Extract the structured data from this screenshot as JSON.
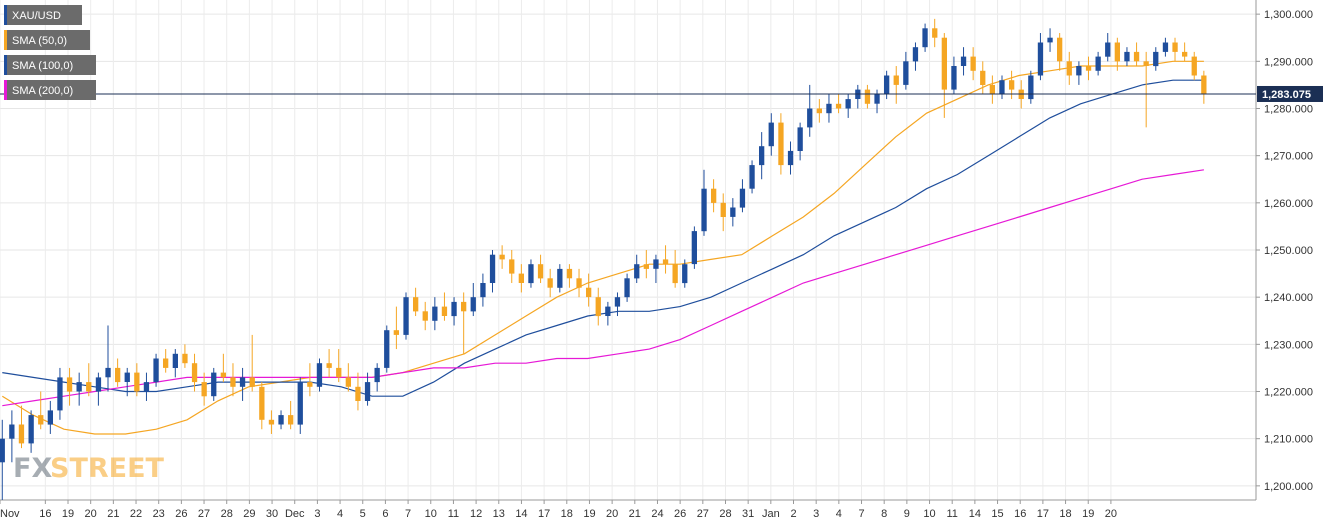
{
  "chart_data": {
    "type": "candlestick",
    "symbol": "XAU/USD",
    "y_axis": {
      "min": 1197,
      "max": 1303,
      "ticks": [
        "1,200.000",
        "1,210.000",
        "1,220.000",
        "1,230.000",
        "1,240.000",
        "1,250.000",
        "1,260.000",
        "1,270.000",
        "1,280.000",
        "1,290.000",
        "1,300.000"
      ],
      "tick_values": [
        1200,
        1210,
        1220,
        1230,
        1240,
        1250,
        1260,
        1270,
        1280,
        1290,
        1300
      ],
      "position": "right"
    },
    "x_axis": {
      "start": 0,
      "end": 55.4,
      "labels": [
        {
          "text": "Nov",
          "pos": 0
        },
        {
          "text": "16",
          "pos": 2
        },
        {
          "text": "19",
          "pos": 3
        },
        {
          "text": "20",
          "pos": 4
        },
        {
          "text": "21",
          "pos": 5
        },
        {
          "text": "22",
          "pos": 6
        },
        {
          "text": "23",
          "pos": 7
        },
        {
          "text": "26",
          "pos": 8
        },
        {
          "text": "27",
          "pos": 9
        },
        {
          "text": "28",
          "pos": 10
        },
        {
          "text": "29",
          "pos": 11
        },
        {
          "text": "30",
          "pos": 12
        },
        {
          "text": "Dec",
          "pos": 13
        },
        {
          "text": "3",
          "pos": 14
        },
        {
          "text": "4",
          "pos": 15
        },
        {
          "text": "5",
          "pos": 16
        },
        {
          "text": "6",
          "pos": 17
        },
        {
          "text": "7",
          "pos": 18
        },
        {
          "text": "10",
          "pos": 19
        },
        {
          "text": "11",
          "pos": 20
        },
        {
          "text": "12",
          "pos": 21
        },
        {
          "text": "13",
          "pos": 22
        },
        {
          "text": "14",
          "pos": 23
        },
        {
          "text": "17",
          "pos": 24
        },
        {
          "text": "18",
          "pos": 25
        },
        {
          "text": "19",
          "pos": 26
        },
        {
          "text": "20",
          "pos": 27
        },
        {
          "text": "21",
          "pos": 28
        },
        {
          "text": "24",
          "pos": 29
        },
        {
          "text": "26",
          "pos": 30
        },
        {
          "text": "27",
          "pos": 31
        },
        {
          "text": "28",
          "pos": 32
        },
        {
          "text": "31",
          "pos": 33
        },
        {
          "text": "Jan",
          "pos": 34
        },
        {
          "text": "2",
          "pos": 35
        },
        {
          "text": "3",
          "pos": 36
        },
        {
          "text": "4",
          "pos": 37
        },
        {
          "text": "7",
          "pos": 38
        },
        {
          "text": "8",
          "pos": 39
        },
        {
          "text": "9",
          "pos": 40
        },
        {
          "text": "10",
          "pos": 41
        },
        {
          "text": "11",
          "pos": 42
        },
        {
          "text": "14",
          "pos": 43
        },
        {
          "text": "15",
          "pos": 44
        },
        {
          "text": "16",
          "pos": 45
        },
        {
          "text": "17",
          "pos": 46
        },
        {
          "text": "18",
          "pos": 47
        },
        {
          "text": "19",
          "pos": 48
        },
        {
          "text": "20",
          "pos": 49
        }
      ]
    },
    "grid": true,
    "last_price": 1283.075,
    "last_price_label": "1,283.075",
    "candle_colors": {
      "up": "#1f4e9c",
      "down": "#f5a623"
    },
    "candles": [
      {
        "o": 1205.0,
        "h": 1214.0,
        "l": 1197.0,
        "c": 1210.0
      },
      {
        "o": 1210.0,
        "h": 1216.0,
        "l": 1205.0,
        "c": 1213.0
      },
      {
        "o": 1213.0,
        "h": 1217.0,
        "l": 1208.0,
        "c": 1209.0
      },
      {
        "o": 1209.0,
        "h": 1216.0,
        "l": 1207.0,
        "c": 1215.0
      },
      {
        "o": 1215.0,
        "h": 1220.0,
        "l": 1212.0,
        "c": 1213.0
      },
      {
        "o": 1213.0,
        "h": 1218.0,
        "l": 1211.0,
        "c": 1216.0
      },
      {
        "o": 1216.0,
        "h": 1225.0,
        "l": 1214.0,
        "c": 1223.0
      },
      {
        "o": 1223.0,
        "h": 1225.0,
        "l": 1217.0,
        "c": 1220.0
      },
      {
        "o": 1220.0,
        "h": 1224.0,
        "l": 1217.0,
        "c": 1222.0
      },
      {
        "o": 1222.0,
        "h": 1226.0,
        "l": 1219.0,
        "c": 1220.0
      },
      {
        "o": 1220.0,
        "h": 1224.0,
        "l": 1217.0,
        "c": 1223.0
      },
      {
        "o": 1223.0,
        "h": 1234.0,
        "l": 1220.0,
        "c": 1225.0
      },
      {
        "o": 1225.0,
        "h": 1227.0,
        "l": 1221.0,
        "c": 1222.0
      },
      {
        "o": 1222.0,
        "h": 1225.0,
        "l": 1219.0,
        "c": 1224.0
      },
      {
        "o": 1224.0,
        "h": 1226.0,
        "l": 1219.0,
        "c": 1220.0
      },
      {
        "o": 1220.0,
        "h": 1224.0,
        "l": 1218.0,
        "c": 1222.0
      },
      {
        "o": 1222.0,
        "h": 1228.0,
        "l": 1221.0,
        "c": 1227.0
      },
      {
        "o": 1227.0,
        "h": 1229.0,
        "l": 1224.0,
        "c": 1225.0
      },
      {
        "o": 1225.0,
        "h": 1229.0,
        "l": 1223.0,
        "c": 1228.0
      },
      {
        "o": 1228.0,
        "h": 1230.0,
        "l": 1225.0,
        "c": 1226.0
      },
      {
        "o": 1226.0,
        "h": 1228.0,
        "l": 1220.0,
        "c": 1222.0
      },
      {
        "o": 1222.0,
        "h": 1224.0,
        "l": 1217.0,
        "c": 1219.0
      },
      {
        "o": 1219.0,
        "h": 1225.0,
        "l": 1218.0,
        "c": 1224.0
      },
      {
        "o": 1224.0,
        "h": 1228.0,
        "l": 1222.0,
        "c": 1223.0
      },
      {
        "o": 1223.0,
        "h": 1226.0,
        "l": 1219.0,
        "c": 1221.0
      },
      {
        "o": 1221.0,
        "h": 1225.0,
        "l": 1218.0,
        "c": 1223.0
      },
      {
        "o": 1223.0,
        "h": 1232.0,
        "l": 1220.0,
        "c": 1221.0
      },
      {
        "o": 1221.0,
        "h": 1222.0,
        "l": 1212.0,
        "c": 1214.0
      },
      {
        "o": 1214.0,
        "h": 1216.0,
        "l": 1211.0,
        "c": 1213.0
      },
      {
        "o": 1213.0,
        "h": 1216.0,
        "l": 1212.0,
        "c": 1215.0
      },
      {
        "o": 1215.0,
        "h": 1218.0,
        "l": 1212.0,
        "c": 1213.0
      },
      {
        "o": 1213.0,
        "h": 1223.0,
        "l": 1211.0,
        "c": 1222.0
      },
      {
        "o": 1222.0,
        "h": 1226.0,
        "l": 1219.0,
        "c": 1221.0
      },
      {
        "o": 1221.0,
        "h": 1227.0,
        "l": 1220.0,
        "c": 1226.0
      },
      {
        "o": 1226.0,
        "h": 1229.0,
        "l": 1223.0,
        "c": 1225.0
      },
      {
        "o": 1225.0,
        "h": 1229.0,
        "l": 1222.0,
        "c": 1223.0
      },
      {
        "o": 1223.0,
        "h": 1226.0,
        "l": 1220.0,
        "c": 1221.0
      },
      {
        "o": 1221.0,
        "h": 1224.0,
        "l": 1216.0,
        "c": 1218.0
      },
      {
        "o": 1218.0,
        "h": 1224.0,
        "l": 1217.0,
        "c": 1222.0
      },
      {
        "o": 1222.0,
        "h": 1226.0,
        "l": 1220.0,
        "c": 1225.0
      },
      {
        "o": 1225.0,
        "h": 1234.0,
        "l": 1224.0,
        "c": 1233.0
      },
      {
        "o": 1233.0,
        "h": 1238.0,
        "l": 1229.0,
        "c": 1232.0
      },
      {
        "o": 1232.0,
        "h": 1241.0,
        "l": 1231.0,
        "c": 1240.0
      },
      {
        "o": 1240.0,
        "h": 1242.0,
        "l": 1236.0,
        "c": 1237.0
      },
      {
        "o": 1237.0,
        "h": 1239.0,
        "l": 1233.0,
        "c": 1235.0
      },
      {
        "o": 1235.0,
        "h": 1240.0,
        "l": 1233.0,
        "c": 1238.0
      },
      {
        "o": 1238.0,
        "h": 1241.0,
        "l": 1235.0,
        "c": 1236.0
      },
      {
        "o": 1236.0,
        "h": 1240.0,
        "l": 1234.0,
        "c": 1239.0
      },
      {
        "o": 1239.0,
        "h": 1241.0,
        "l": 1228.0,
        "c": 1237.0
      },
      {
        "o": 1237.0,
        "h": 1243.0,
        "l": 1236.0,
        "c": 1240.0
      },
      {
        "o": 1240.0,
        "h": 1245.0,
        "l": 1238.0,
        "c": 1243.0
      },
      {
        "o": 1243.0,
        "h": 1250.0,
        "l": 1241.0,
        "c": 1249.0
      },
      {
        "o": 1249.0,
        "h": 1251.0,
        "l": 1246.0,
        "c": 1248.0
      },
      {
        "o": 1248.0,
        "h": 1250.0,
        "l": 1243.0,
        "c": 1245.0
      },
      {
        "o": 1245.0,
        "h": 1247.0,
        "l": 1241.0,
        "c": 1243.0
      },
      {
        "o": 1243.0,
        "h": 1248.0,
        "l": 1242.0,
        "c": 1247.0
      },
      {
        "o": 1247.0,
        "h": 1249.0,
        "l": 1243.0,
        "c": 1244.0
      },
      {
        "o": 1244.0,
        "h": 1246.0,
        "l": 1240.0,
        "c": 1242.0
      },
      {
        "o": 1242.0,
        "h": 1247.0,
        "l": 1241.0,
        "c": 1246.0
      },
      {
        "o": 1246.0,
        "h": 1247.0,
        "l": 1242.0,
        "c": 1244.0
      },
      {
        "o": 1244.0,
        "h": 1246.0,
        "l": 1240.0,
        "c": 1242.0
      },
      {
        "o": 1242.0,
        "h": 1245.0,
        "l": 1238.0,
        "c": 1240.0
      },
      {
        "o": 1240.0,
        "h": 1242.0,
        "l": 1234.0,
        "c": 1236.0
      },
      {
        "o": 1236.0,
        "h": 1239.0,
        "l": 1234.0,
        "c": 1238.0
      },
      {
        "o": 1238.0,
        "h": 1241.0,
        "l": 1236.0,
        "c": 1240.0
      },
      {
        "o": 1240.0,
        "h": 1245.0,
        "l": 1239.0,
        "c": 1244.0
      },
      {
        "o": 1244.0,
        "h": 1249.0,
        "l": 1243.0,
        "c": 1247.0
      },
      {
        "o": 1247.0,
        "h": 1250.0,
        "l": 1244.0,
        "c": 1246.0
      },
      {
        "o": 1246.0,
        "h": 1249.0,
        "l": 1243.0,
        "c": 1248.0
      },
      {
        "o": 1248.0,
        "h": 1251.0,
        "l": 1245.0,
        "c": 1247.0
      },
      {
        "o": 1247.0,
        "h": 1250.0,
        "l": 1242.0,
        "c": 1243.0
      },
      {
        "o": 1243.0,
        "h": 1248.0,
        "l": 1242.0,
        "c": 1247.0
      },
      {
        "o": 1247.0,
        "h": 1255.0,
        "l": 1246.0,
        "c": 1254.0
      },
      {
        "o": 1254.0,
        "h": 1267.0,
        "l": 1253.0,
        "c": 1263.0
      },
      {
        "o": 1263.0,
        "h": 1265.0,
        "l": 1258.0,
        "c": 1260.0
      },
      {
        "o": 1260.0,
        "h": 1262.0,
        "l": 1254.0,
        "c": 1257.0
      },
      {
        "o": 1257.0,
        "h": 1261.0,
        "l": 1255.0,
        "c": 1259.0
      },
      {
        "o": 1259.0,
        "h": 1265.0,
        "l": 1258.0,
        "c": 1263.0
      },
      {
        "o": 1263.0,
        "h": 1269.0,
        "l": 1262.0,
        "c": 1268.0
      },
      {
        "o": 1268.0,
        "h": 1275.0,
        "l": 1265.0,
        "c": 1272.0
      },
      {
        "o": 1272.0,
        "h": 1279.0,
        "l": 1270.0,
        "c": 1277.0
      },
      {
        "o": 1277.0,
        "h": 1279.0,
        "l": 1266.0,
        "c": 1268.0
      },
      {
        "o": 1268.0,
        "h": 1273.0,
        "l": 1266.0,
        "c": 1271.0
      },
      {
        "o": 1271.0,
        "h": 1277.0,
        "l": 1269.0,
        "c": 1276.0
      },
      {
        "o": 1276.0,
        "h": 1285.0,
        "l": 1274.0,
        "c": 1280.0
      },
      {
        "o": 1280.0,
        "h": 1282.0,
        "l": 1277.0,
        "c": 1279.0
      },
      {
        "o": 1279.0,
        "h": 1283.0,
        "l": 1277.0,
        "c": 1281.0
      },
      {
        "o": 1281.0,
        "h": 1283.0,
        "l": 1279.0,
        "c": 1280.0
      },
      {
        "o": 1280.0,
        "h": 1283.0,
        "l": 1278.0,
        "c": 1282.0
      },
      {
        "o": 1282.0,
        "h": 1285.0,
        "l": 1280.0,
        "c": 1284.0
      },
      {
        "o": 1284.0,
        "h": 1285.0,
        "l": 1280.0,
        "c": 1281.0
      },
      {
        "o": 1281.0,
        "h": 1284.0,
        "l": 1279.0,
        "c": 1283.0
      },
      {
        "o": 1283.0,
        "h": 1288.0,
        "l": 1282.0,
        "c": 1287.0
      },
      {
        "o": 1287.0,
        "h": 1289.0,
        "l": 1281.0,
        "c": 1285.0
      },
      {
        "o": 1285.0,
        "h": 1292.0,
        "l": 1284.0,
        "c": 1290.0
      },
      {
        "o": 1290.0,
        "h": 1294.0,
        "l": 1288.0,
        "c": 1293.0
      },
      {
        "o": 1293.0,
        "h": 1298.0,
        "l": 1292.0,
        "c": 1297.0
      },
      {
        "o": 1297.0,
        "h": 1299.0,
        "l": 1293.0,
        "c": 1295.0
      },
      {
        "o": 1295.0,
        "h": 1296.0,
        "l": 1278.0,
        "c": 1284.0
      },
      {
        "o": 1284.0,
        "h": 1291.0,
        "l": 1283.0,
        "c": 1289.0
      },
      {
        "o": 1289.0,
        "h": 1293.0,
        "l": 1287.0,
        "c": 1291.0
      },
      {
        "o": 1291.0,
        "h": 1293.0,
        "l": 1286.0,
        "c": 1288.0
      },
      {
        "o": 1288.0,
        "h": 1290.0,
        "l": 1283.0,
        "c": 1285.0
      },
      {
        "o": 1285.0,
        "h": 1287.0,
        "l": 1281.0,
        "c": 1283.0
      },
      {
        "o": 1283.0,
        "h": 1287.0,
        "l": 1282.0,
        "c": 1286.0
      },
      {
        "o": 1286.0,
        "h": 1288.0,
        "l": 1282.0,
        "c": 1284.0
      },
      {
        "o": 1284.0,
        "h": 1286.0,
        "l": 1280.0,
        "c": 1282.0
      },
      {
        "o": 1282.0,
        "h": 1288.0,
        "l": 1281.0,
        "c": 1287.0
      },
      {
        "o": 1287.0,
        "h": 1296.0,
        "l": 1286.0,
        "c": 1294.0
      },
      {
        "o": 1294.0,
        "h": 1297.0,
        "l": 1292.0,
        "c": 1295.0
      },
      {
        "o": 1295.0,
        "h": 1296.0,
        "l": 1288.0,
        "c": 1290.0
      },
      {
        "o": 1290.0,
        "h": 1292.0,
        "l": 1285.0,
        "c": 1287.0
      },
      {
        "o": 1287.0,
        "h": 1290.0,
        "l": 1285.0,
        "c": 1289.0
      },
      {
        "o": 1289.0,
        "h": 1291.0,
        "l": 1286.0,
        "c": 1288.0
      },
      {
        "o": 1288.0,
        "h": 1292.0,
        "l": 1287.0,
        "c": 1291.0
      },
      {
        "o": 1291.0,
        "h": 1296.0,
        "l": 1290.0,
        "c": 1294.0
      },
      {
        "o": 1294.0,
        "h": 1295.0,
        "l": 1288.0,
        "c": 1290.0
      },
      {
        "o": 1290.0,
        "h": 1293.0,
        "l": 1289.0,
        "c": 1292.0
      },
      {
        "o": 1292.0,
        "h": 1294.0,
        "l": 1289.0,
        "c": 1290.0
      },
      {
        "o": 1290.0,
        "h": 1292.0,
        "l": 1276.0,
        "c": 1289.0
      },
      {
        "o": 1289.0,
        "h": 1293.0,
        "l": 1288.0,
        "c": 1292.0
      },
      {
        "o": 1292.0,
        "h": 1295.0,
        "l": 1291.0,
        "c": 1294.0
      },
      {
        "o": 1294.0,
        "h": 1295.0,
        "l": 1290.0,
        "c": 1292.0
      },
      {
        "o": 1292.0,
        "h": 1294.0,
        "l": 1290.0,
        "c": 1291.0
      },
      {
        "o": 1291.0,
        "h": 1292.0,
        "l": 1286.0,
        "c": 1287.0
      },
      {
        "o": 1287.0,
        "h": 1288.0,
        "l": 1281.0,
        "c": 1283.0
      }
    ],
    "series": [
      {
        "name": "SMA (50,0)",
        "color": "#f5a623",
        "values": [
          1219,
          1215,
          1212,
          1211,
          1211,
          1212,
          1214,
          1218,
          1221,
          1222,
          1223,
          1223,
          1223,
          1224,
          1226,
          1228,
          1232,
          1236,
          1240,
          1243,
          1245,
          1247,
          1247,
          1248,
          1249,
          1253,
          1257,
          1262,
          1268,
          1274,
          1279,
          1282,
          1285,
          1287,
          1288,
          1289,
          1289,
          1289,
          1290,
          1290
        ]
      },
      {
        "name": "SMA (100,0)",
        "color": "#1f4e9c",
        "values": [
          1224,
          1223,
          1222,
          1221,
          1220,
          1220,
          1221,
          1222,
          1222,
          1222,
          1222,
          1221,
          1219,
          1219,
          1222,
          1226,
          1229,
          1232,
          1234,
          1236,
          1237,
          1237,
          1238,
          1240,
          1243,
          1246,
          1249,
          1253,
          1256,
          1259,
          1263,
          1266,
          1270,
          1274,
          1278,
          1281,
          1283,
          1285,
          1286,
          1286
        ]
      },
      {
        "name": "SMA (200,0)",
        "color": "#e619d6",
        "values": [
          1217,
          1218,
          1219,
          1220,
          1221,
          1222,
          1223,
          1223,
          1223,
          1223,
          1223,
          1223,
          1223,
          1224,
          1225,
          1225,
          1226,
          1226,
          1227,
          1227,
          1228,
          1229,
          1231,
          1234,
          1237,
          1240,
          1243,
          1245,
          1247,
          1249,
          1251,
          1253,
          1255,
          1257,
          1259,
          1261,
          1263,
          1265,
          1266,
          1267
        ]
      }
    ],
    "legend": [
      {
        "label": "XAU/USD",
        "color": "#1f4e9c"
      },
      {
        "label": "SMA (50,0)",
        "color": "#f5a623"
      },
      {
        "label": "SMA (100,0)",
        "color": "#1f4e9c"
      },
      {
        "label": "SMA (200,0)",
        "color": "#e619d6"
      }
    ],
    "legend_placement": "top-left"
  },
  "watermark": {
    "fx": "FX",
    "street": "STREET"
  }
}
